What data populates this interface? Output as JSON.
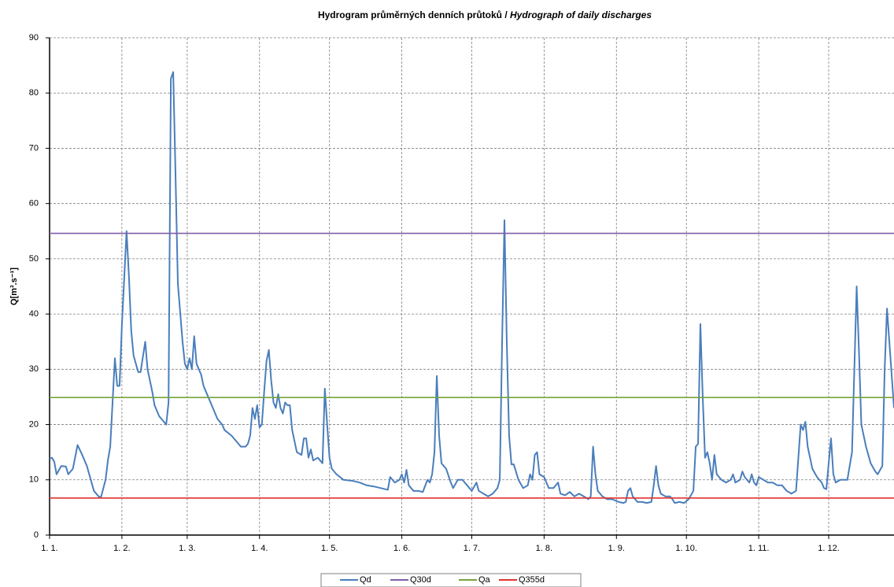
{
  "chart_data": {
    "type": "line",
    "title": "Hydrogram průměrných denních průtoků / ",
    "title_en": "Hydrograph of daily discharges",
    "y_label": "Q[m³.s⁻¹]",
    "xlim": [
      0,
      362
    ],
    "xticks": [
      {
        "value": 0,
        "label": "1. 1."
      },
      {
        "value": 31,
        "label": "1. 2."
      },
      {
        "value": 59,
        "label": "1. 3."
      },
      {
        "value": 90,
        "label": "1. 4."
      },
      {
        "value": 120,
        "label": "1. 5."
      },
      {
        "value": 151,
        "label": "1. 6."
      },
      {
        "value": 181,
        "label": "1. 7."
      },
      {
        "value": 212,
        "label": "1. 8."
      },
      {
        "value": 243,
        "label": "1. 9."
      },
      {
        "value": 273,
        "label": "1. 10."
      },
      {
        "value": 304,
        "label": "1. 11."
      },
      {
        "value": 334,
        "label": "1. 12."
      }
    ],
    "ylim": [
      0,
      90
    ],
    "yticks": [
      0,
      10,
      20,
      30,
      40,
      50,
      60,
      70,
      80,
      90
    ],
    "grid": true,
    "legend": "bottom",
    "x": [
      0,
      1,
      2,
      3,
      5,
      7,
      8,
      10,
      12,
      14,
      16,
      18,
      19,
      21,
      22,
      24,
      25,
      26,
      27,
      28,
      29,
      30,
      31,
      33,
      34,
      35,
      36,
      38,
      39,
      41,
      42,
      44,
      45,
      47,
      49,
      50,
      51,
      52,
      53,
      54,
      55,
      57,
      58,
      59,
      60,
      61,
      62,
      63,
      65,
      66,
      68,
      70,
      72,
      74,
      75,
      78,
      80,
      82,
      84,
      85,
      86,
      87,
      88,
      89,
      90,
      91,
      92,
      93,
      94,
      95,
      96,
      97,
      98,
      99,
      100,
      101,
      102,
      103,
      104,
      106,
      108,
      109,
      110,
      111,
      112,
      113,
      115,
      116,
      117,
      118,
      119,
      120,
      121,
      123,
      126,
      130,
      133,
      136,
      139,
      142,
      145,
      146,
      148,
      150,
      151,
      152,
      153,
      154,
      156,
      158,
      160,
      162,
      163,
      164,
      165,
      166,
      167,
      168,
      170,
      172,
      173,
      175,
      177,
      179,
      181,
      183,
      184,
      186,
      188,
      190,
      192,
      193,
      194,
      195,
      196,
      197,
      198,
      199,
      201,
      203,
      205,
      206,
      207,
      208,
      209,
      210,
      212,
      214,
      216,
      218,
      219,
      221,
      223,
      225,
      227,
      229,
      231,
      232,
      233,
      234,
      235,
      237,
      239,
      241,
      244,
      246,
      247,
      248,
      249,
      250,
      252,
      254,
      256,
      258,
      259,
      260,
      261,
      262,
      264,
      266,
      267,
      268,
      270,
      272,
      274,
      276,
      277,
      278,
      279,
      280,
      281,
      282,
      283,
      284,
      285,
      286,
      288,
      290,
      292,
      293,
      294,
      296,
      297,
      298,
      299,
      300,
      301,
      302,
      303,
      304,
      306,
      308,
      310,
      312,
      314,
      316,
      318,
      320,
      321,
      322,
      323,
      324,
      325,
      327,
      329,
      331,
      332,
      333,
      334,
      335,
      336,
      337,
      339,
      342,
      344,
      345,
      346,
      347,
      348,
      350,
      351,
      352,
      354,
      355,
      357,
      358,
      359,
      360,
      362
    ],
    "series": [
      {
        "name": "Qd",
        "color": "#4a7ebb",
        "values": [
          13.8,
          14,
          13.3,
          11,
          12.5,
          12.4,
          11,
          12,
          16.3,
          14.5,
          12.5,
          9.5,
          8,
          7,
          6.8,
          10,
          13.5,
          16,
          24,
          32,
          27,
          27,
          38,
          55,
          47,
          37,
          32.5,
          29.5,
          29.5,
          35,
          30,
          26,
          23.5,
          21.5,
          20.5,
          20,
          24,
          82.6,
          83.8,
          65,
          45.5,
          35,
          31,
          30,
          32,
          30,
          36,
          31,
          29,
          27,
          25,
          23,
          21,
          20,
          19,
          18,
          17,
          16,
          16,
          16.5,
          18,
          23,
          21,
          23.5,
          19.5,
          20,
          26,
          31.5,
          33.5,
          28,
          24,
          23,
          25.5,
          23,
          22,
          24,
          23.5,
          23.5,
          19,
          15,
          14.5,
          17.5,
          17.5,
          14,
          15.5,
          13.5,
          14,
          13.5,
          13,
          26.5,
          20,
          14,
          12,
          11,
          10,
          9.8,
          9.5,
          9,
          8.8,
          8.5,
          8.2,
          10.5,
          9.5,
          10,
          11,
          9.5,
          11.8,
          9,
          8,
          8,
          7.8,
          10,
          9.5,
          11,
          15,
          28.8,
          18,
          13,
          12,
          9.5,
          8.5,
          10,
          10,
          9,
          8,
          9.5,
          8,
          7.5,
          7,
          7.5,
          8.5,
          10,
          35,
          57,
          35,
          18,
          12.8,
          12.8,
          10,
          8.5,
          9,
          11,
          10,
          14.5,
          15,
          11,
          10.5,
          8.5,
          8.5,
          9.5,
          7.5,
          7.2,
          7.8,
          7,
          7.5,
          7,
          6.5,
          7,
          16,
          11,
          8,
          7,
          6.5,
          6.5,
          6,
          5.8,
          6,
          8,
          8.5,
          7,
          6,
          6,
          5.8,
          6,
          9,
          12.5,
          9,
          7.5,
          7,
          7,
          6.5,
          5.8,
          6,
          5.8,
          6.5,
          8,
          16,
          16.5,
          38.2,
          25,
          14,
          15,
          13,
          10,
          14.5,
          11,
          10,
          9.5,
          10,
          11,
          9.5,
          10,
          11.5,
          10.5,
          10,
          9.5,
          11,
          9.5,
          9,
          10.5,
          10,
          9.5,
          9.5,
          9,
          9,
          8,
          7.5,
          8,
          14,
          20,
          19,
          20.5,
          16,
          12,
          10.5,
          9.5,
          8.5,
          8.3,
          13,
          17.5,
          11,
          9.5,
          10,
          10,
          15,
          30,
          45,
          33,
          20,
          16,
          14.5,
          13,
          11.5,
          11,
          12.5,
          30,
          41,
          35,
          23
        ]
      },
      {
        "name": "Q30d",
        "color": "#7f5fa8",
        "value": 54.6
      },
      {
        "name": "Qa",
        "color": "#77a33b",
        "value": 24.9
      },
      {
        "name": "Q355d",
        "color": "#e0332f",
        "value": 6.7
      }
    ]
  }
}
